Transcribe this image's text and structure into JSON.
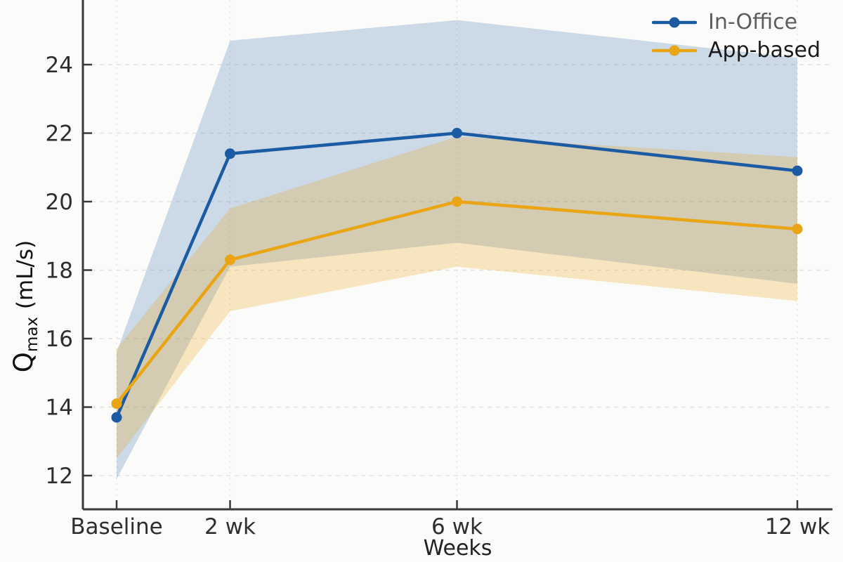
{
  "page": {
    "background": "#fbfbf9"
  },
  "chart_data": {
    "type": "line",
    "title": "",
    "xlabel": "Weeks",
    "ylabel": {
      "base": "Q",
      "subscript": "max",
      "unit": "(mL/s)"
    },
    "categories": [
      "Baseline",
      "2 wk",
      "6 wk",
      "12 wk"
    ],
    "x_weeks": [
      0,
      2,
      6,
      12
    ],
    "yticks": [
      12,
      14,
      16,
      18,
      20,
      22,
      24
    ],
    "ylim": [
      11.0,
      25.9
    ],
    "xlim_weeks": [
      -0.6,
      12.6
    ],
    "grid": true,
    "legend_position": "upper-right",
    "series": [
      {
        "name": "In-Office",
        "color": "#1b5ba3",
        "label_color": "#5d5d5d",
        "values": [
          13.7,
          21.4,
          22.0,
          20.9
        ],
        "band_lower": [
          11.9,
          18.1,
          18.8,
          17.6
        ],
        "band_upper": [
          15.6,
          24.7,
          25.3,
          24.2
        ],
        "band_opacity": 0.21
      },
      {
        "name": "App-based",
        "color": "#e9a513",
        "label_color": "#1a1a1a",
        "values": [
          14.1,
          18.3,
          20.0,
          19.2
        ],
        "band_lower": [
          12.5,
          16.8,
          18.1,
          17.1
        ],
        "band_upper": [
          15.7,
          19.8,
          21.9,
          21.3
        ],
        "band_opacity": 0.25
      }
    ],
    "axis_colors": {
      "spine": "#3a3a3a",
      "tick_label": "#2e2e2e",
      "grid_h": "#e5e2e2",
      "grid_v": "#eae3e3"
    }
  }
}
